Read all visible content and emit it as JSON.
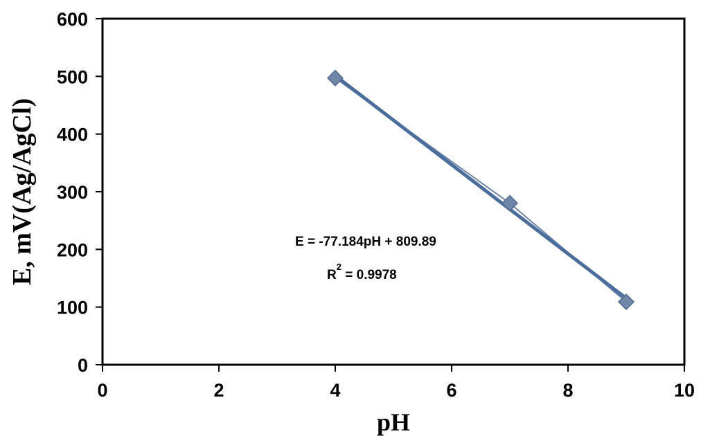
{
  "chart_data": {
    "type": "scatter",
    "xlabel": "pH",
    "ylabel": "E, mV(Ag/AgCl)",
    "xlim": [
      0,
      10
    ],
    "ylim": [
      0,
      600
    ],
    "xticks": [
      0,
      2,
      4,
      6,
      8,
      10
    ],
    "yticks": [
      0,
      100,
      200,
      300,
      400,
      500,
      600
    ],
    "xtick_labels": [
      "0",
      "2",
      "4",
      "6",
      "8",
      "10"
    ],
    "ytick_labels": [
      "0",
      "100",
      "200",
      "300",
      "400",
      "500",
      "600"
    ],
    "grid": false,
    "legend": "none",
    "series": [
      {
        "x": [
          4,
          7,
          9
        ],
        "y": [
          497,
          280,
          109
        ],
        "marker": "diamond",
        "connected": true,
        "color": "#6f86a8"
      }
    ],
    "trendline": {
      "type": "linear",
      "slope": -77.184,
      "intercept": 809.89,
      "color": "#4a6d9c"
    },
    "annotations": {
      "equation": "E = -77.184pH + 809.89",
      "r2_prefix": "R",
      "r2_power": "2",
      "r2_suffix": " = 0.9978"
    }
  }
}
